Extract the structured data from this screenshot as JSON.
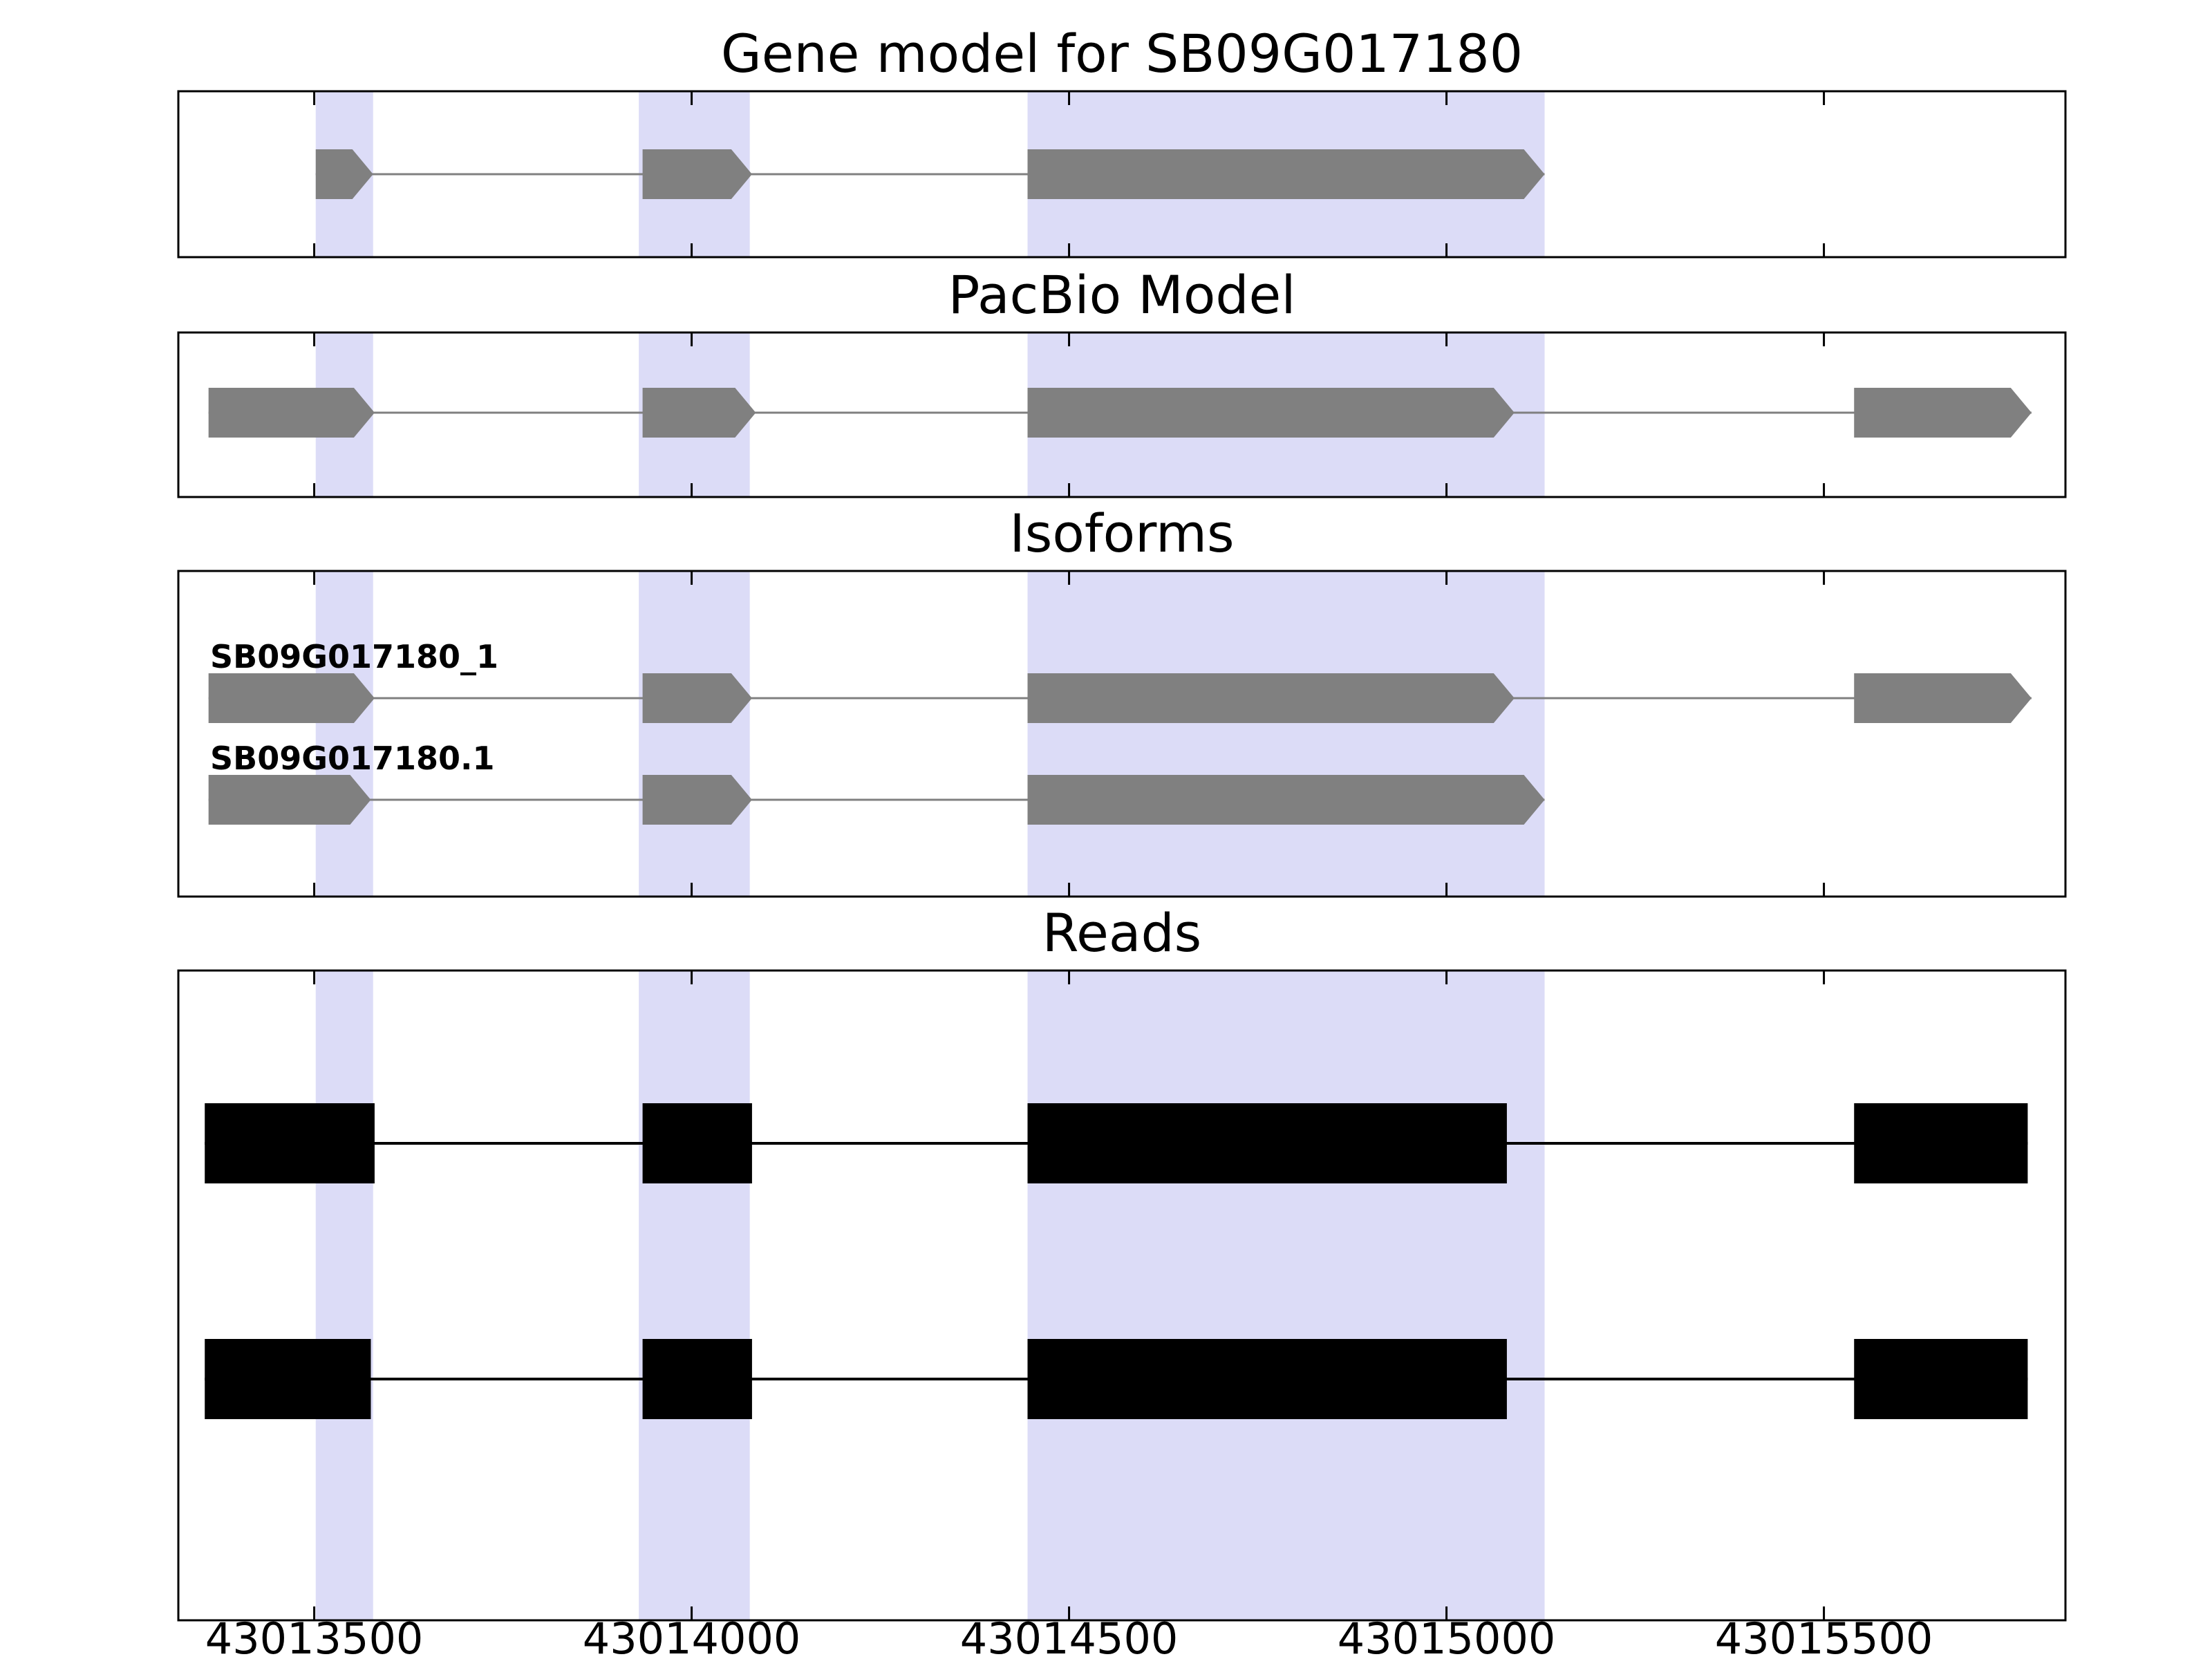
{
  "figure": {
    "background": "#ffffff",
    "border_color": "#000000"
  },
  "chart_data": {
    "type": "gene-track",
    "title": "Gene model for SB09G017180",
    "x_axis": {
      "xlim": [
        43013320,
        43015820
      ],
      "ticks": [
        43013500,
        43014000,
        43014500,
        43015000,
        43015500
      ],
      "tick_labels": [
        "43013500",
        "43014000",
        "43014500",
        "43015000",
        "43015500"
      ]
    },
    "highlight_color": "#dcdcf7",
    "highlight_regions": [
      {
        "start": 43013502,
        "end": 43013578
      },
      {
        "start": 43013930,
        "end": 43014077
      },
      {
        "start": 43014445,
        "end": 43015130
      }
    ],
    "panels": [
      {
        "title": "Gene model for SB09G017180",
        "style": "arrow",
        "color": "#808080",
        "rows": [
          {
            "label": "",
            "exons": [
              [
                43013502,
                43013578
              ],
              [
                43013935,
                43014080
              ],
              [
                43014445,
                43015130
              ]
            ]
          }
        ]
      },
      {
        "title": "PacBio Model",
        "style": "arrow",
        "color": "#808080",
        "rows": [
          {
            "label": "",
            "exons": [
              [
                43013360,
                43013580
              ],
              [
                43013935,
                43014085
              ],
              [
                43014445,
                43015090
              ],
              [
                43015540,
                43015775
              ]
            ]
          }
        ]
      },
      {
        "title": "Isoforms",
        "style": "arrow",
        "color": "#808080",
        "rows": [
          {
            "label": "SB09G017180_1",
            "exons": [
              [
                43013360,
                43013580
              ],
              [
                43013935,
                43014080
              ],
              [
                43014445,
                43015090
              ],
              [
                43015540,
                43015775
              ]
            ]
          },
          {
            "label": "SB09G017180.1",
            "exons": [
              [
                43013360,
                43013575
              ],
              [
                43013935,
                43014080
              ],
              [
                43014445,
                43015130
              ]
            ]
          }
        ]
      },
      {
        "title": "Reads",
        "style": "rect",
        "color": "#000000",
        "rows": [
          {
            "label": "",
            "exons": [
              [
                43013355,
                43013580
              ],
              [
                43013935,
                43014080
              ],
              [
                43014445,
                43015080
              ],
              [
                43015540,
                43015770
              ]
            ]
          },
          {
            "label": "",
            "exons": [
              [
                43013355,
                43013575
              ],
              [
                43013935,
                43014080
              ],
              [
                43014445,
                43015080
              ],
              [
                43015540,
                43015770
              ]
            ]
          }
        ]
      }
    ]
  }
}
